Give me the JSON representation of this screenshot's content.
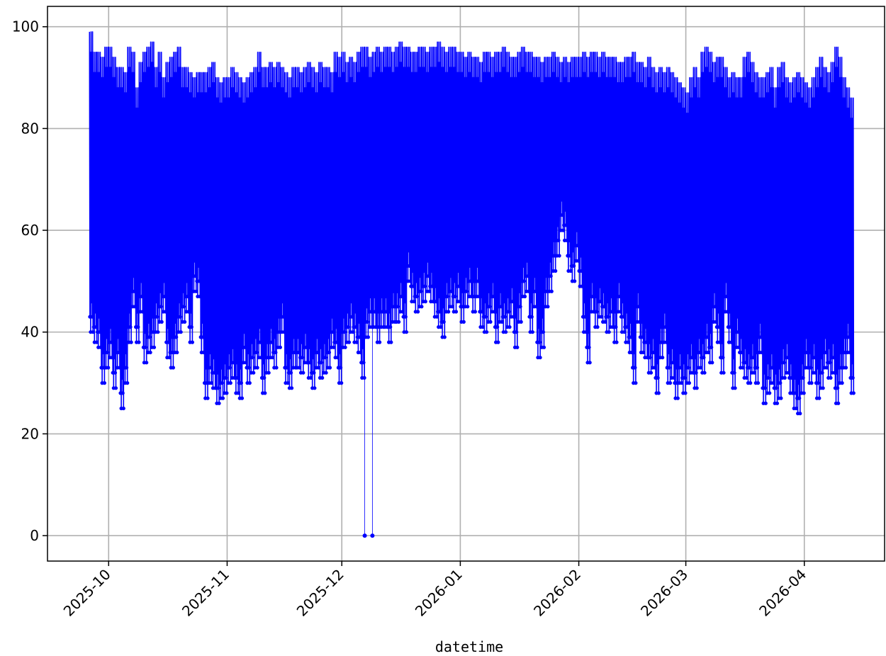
{
  "chart_data": {
    "type": "line",
    "xlabel": "datetime",
    "ylabel": "",
    "x_axis_kind": "date",
    "xlim": [
      "2025-09-15",
      "2026-04-22"
    ],
    "ylim": [
      -5,
      104
    ],
    "grid": true,
    "x_ticks": [
      "2025-10",
      "2025-11",
      "2025-12",
      "2026-01",
      "2026-02",
      "2026-03",
      "2026-04"
    ],
    "x_tick_dates": [
      "2025-10-01",
      "2025-11-01",
      "2025-12-01",
      "2026-01-01",
      "2026-02-01",
      "2026-03-01",
      "2026-04-01"
    ],
    "y_ticks": [
      0,
      20,
      40,
      60,
      80,
      100
    ],
    "series": [
      {
        "color": "#0000ff",
        "marker": "dot",
        "x_start": "2025-09-26",
        "x_end": "2026-04-14",
        "daily_min": [
          40,
          38,
          37,
          30,
          33,
          35,
          29,
          33,
          25,
          30,
          38,
          45,
          38,
          44,
          34,
          36,
          37,
          40,
          42,
          44,
          35,
          33,
          36,
          40,
          42,
          44,
          38,
          48,
          47,
          36,
          27,
          30,
          29,
          26,
          27,
          28,
          30,
          31,
          28,
          27,
          34,
          30,
          32,
          33,
          35,
          28,
          32,
          35,
          33,
          37,
          40,
          30,
          29,
          33,
          33,
          32,
          34,
          31,
          29,
          33,
          31,
          32,
          33,
          37,
          35,
          30,
          37,
          38,
          40,
          38,
          36,
          31,
          39,
          41,
          41,
          38,
          41,
          0,
          38,
          42,
          0,
          44,
          40,
          50,
          46,
          44,
          45,
          46,
          48,
          46,
          43,
          41,
          39,
          44,
          45,
          44,
          46,
          42,
          45,
          47,
          44,
          47,
          41,
          40,
          42,
          44,
          38,
          42,
          40,
          41,
          43,
          37,
          42,
          47,
          48,
          40,
          45,
          35,
          37,
          45,
          48,
          52,
          55,
          60,
          58,
          52,
          50,
          54,
          49,
          40,
          34,
          44,
          41,
          43,
          42,
          40,
          41,
          38,
          44,
          40,
          38,
          36,
          30,
          42,
          36,
          35,
          32,
          33,
          28,
          35,
          38,
          30,
          31,
          27,
          30,
          28,
          30,
          32,
          29,
          33,
          32,
          36,
          34,
          42,
          38,
          32,
          44,
          38,
          29,
          37,
          33,
          31,
          30,
          32,
          30,
          36,
          26,
          28,
          30,
          26,
          27,
          31,
          32,
          28,
          25,
          24,
          28,
          33,
          30,
          32,
          27,
          29,
          33,
          31,
          32,
          26,
          30,
          33,
          36,
          28
        ],
        "daily_max": [
          99,
          95,
          95,
          94,
          96,
          96,
          94,
          92,
          92,
          91,
          96,
          95,
          88,
          93,
          95,
          96,
          97,
          92,
          95,
          90,
          93,
          94,
          95,
          96,
          92,
          92,
          91,
          90,
          91,
          91,
          91,
          92,
          93,
          90,
          89,
          90,
          90,
          92,
          91,
          90,
          89,
          90,
          91,
          92,
          95,
          92,
          92,
          93,
          92,
          93,
          92,
          91,
          90,
          92,
          92,
          91,
          92,
          93,
          92,
          91,
          93,
          92,
          92,
          91,
          95,
          94,
          95,
          93,
          94,
          93,
          95,
          96,
          96,
          94,
          95,
          96,
          95,
          96,
          96,
          95,
          96,
          97,
          96,
          96,
          95,
          95,
          96,
          96,
          95,
          96,
          96,
          97,
          96,
          95,
          96,
          96,
          95,
          95,
          94,
          95,
          94,
          94,
          93,
          95,
          95,
          94,
          95,
          95,
          96,
          95,
          94,
          94,
          95,
          96,
          95,
          95,
          94,
          94,
          93,
          94,
          94,
          95,
          94,
          93,
          94,
          93,
          94,
          94,
          94,
          95,
          94,
          95,
          95,
          94,
          95,
          94,
          94,
          94,
          93,
          93,
          94,
          94,
          95,
          93,
          93,
          92,
          94,
          92,
          91,
          92,
          91,
          92,
          91,
          90,
          89,
          88,
          87,
          90,
          92,
          90,
          95,
          96,
          95,
          93,
          94,
          94,
          92,
          90,
          91,
          90,
          90,
          94,
          95,
          93,
          91,
          90,
          90,
          91,
          92,
          88,
          92,
          93,
          90,
          89,
          90,
          91,
          90,
          89,
          88,
          90,
          92,
          94,
          92,
          91,
          93,
          96,
          94,
          90,
          88,
          86
        ],
        "isolated_points": [
          {
            "x": "2025-12-07",
            "y": 0
          },
          {
            "x": "2025-12-09",
            "y": 0
          }
        ]
      }
    ]
  }
}
